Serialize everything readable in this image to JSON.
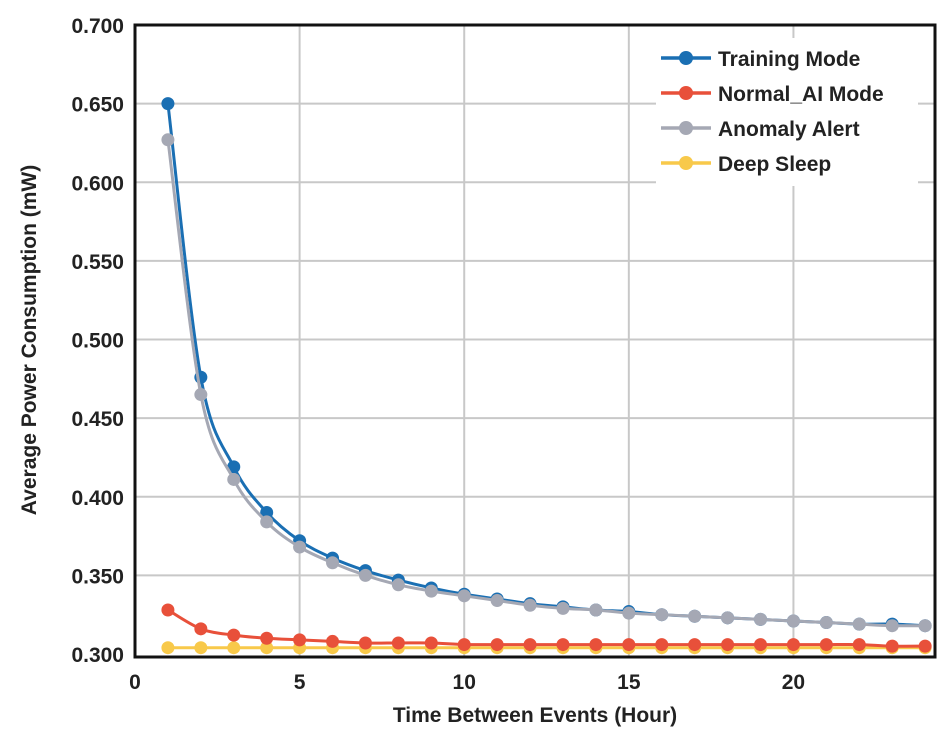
{
  "chart_data": {
    "type": "line",
    "title": "",
    "xlabel": "Time Between Events (Hour)",
    "ylabel": "Average Power Consumption (mW)",
    "xlim": [
      0,
      24.3
    ],
    "ylim": [
      0.3,
      0.7
    ],
    "xticks": [
      "0",
      "5",
      "10",
      "15",
      "20"
    ],
    "yticks": [
      "0.300",
      "0.350",
      "0.400",
      "0.450",
      "0.500",
      "0.550",
      "0.600",
      "0.650",
      "0.700"
    ],
    "grid": true,
    "legend_position": "top-right",
    "x": [
      1,
      2,
      3,
      4,
      5,
      6,
      7,
      8,
      9,
      10,
      11,
      12,
      13,
      14,
      15,
      16,
      17,
      18,
      19,
      20,
      21,
      22,
      23,
      24
    ],
    "series": [
      {
        "name": "Training Mode",
        "color": "#1a6fb3",
        "values": [
          0.65,
          0.476,
          0.419,
          0.39,
          0.372,
          0.361,
          0.353,
          0.347,
          0.342,
          0.338,
          0.335,
          0.332,
          0.33,
          0.328,
          0.327,
          0.325,
          0.324,
          0.323,
          0.322,
          0.321,
          0.32,
          0.319,
          0.319,
          0.318
        ]
      },
      {
        "name": "Normal_AI Mode",
        "color": "#e8503a",
        "values": [
          0.328,
          0.316,
          0.312,
          0.31,
          0.309,
          0.308,
          0.307,
          0.307,
          0.307,
          0.306,
          0.306,
          0.306,
          0.306,
          0.306,
          0.306,
          0.306,
          0.306,
          0.306,
          0.306,
          0.306,
          0.306,
          0.306,
          0.305,
          0.305
        ]
      },
      {
        "name": "Anomaly Alert",
        "color": "#a5a8b4",
        "values": [
          0.627,
          0.465,
          0.411,
          0.384,
          0.368,
          0.358,
          0.35,
          0.344,
          0.34,
          0.337,
          0.334,
          0.331,
          0.329,
          0.328,
          0.326,
          0.325,
          0.324,
          0.323,
          0.322,
          0.321,
          0.32,
          0.319,
          0.318,
          0.318
        ]
      },
      {
        "name": "Deep Sleep",
        "color": "#f8c94a",
        "values": [
          0.304,
          0.304,
          0.304,
          0.304,
          0.304,
          0.304,
          0.304,
          0.304,
          0.304,
          0.304,
          0.304,
          0.304,
          0.304,
          0.304,
          0.304,
          0.304,
          0.304,
          0.304,
          0.304,
          0.304,
          0.304,
          0.304,
          0.304,
          0.304
        ]
      }
    ]
  }
}
